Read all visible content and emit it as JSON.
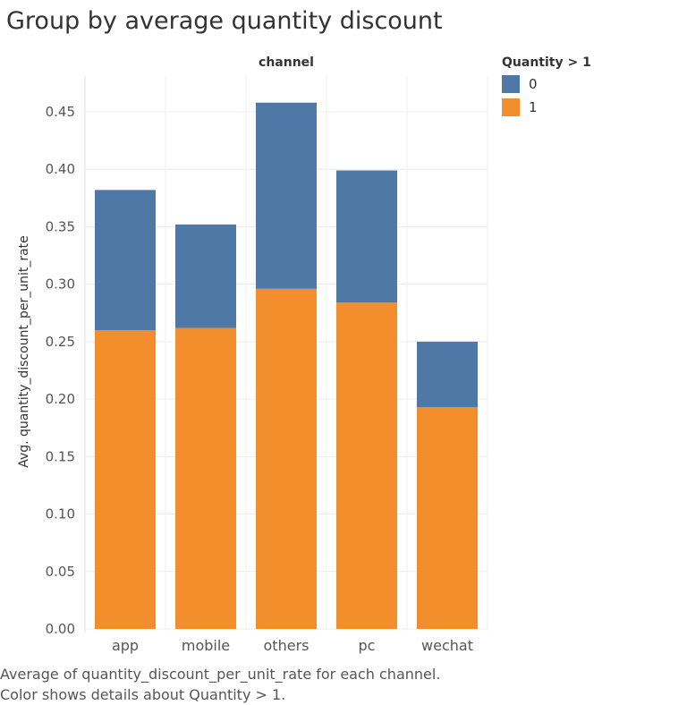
{
  "chart_data": {
    "type": "bar",
    "stacked": true,
    "title": "Group by average quantity discount",
    "column_header": "channel",
    "categories": [
      "app",
      "mobile",
      "others",
      "pc",
      "wechat"
    ],
    "ylabel": "Avg. quantity_discount_per_unit_rate",
    "ylim": [
      0,
      0.47
    ],
    "yticks": [
      "0.00",
      "0.05",
      "0.10",
      "0.15",
      "0.20",
      "0.25",
      "0.30",
      "0.35",
      "0.40",
      "0.45"
    ],
    "legend_title": "Quantity > 1",
    "legend_position": "top-right",
    "grid": true,
    "series": [
      {
        "name": "1",
        "color": "#f28e2b",
        "values": [
          0.26,
          0.262,
          0.296,
          0.284,
          0.193
        ]
      },
      {
        "name": "0",
        "color": "#4e79a7",
        "values": [
          0.122,
          0.09,
          0.162,
          0.115,
          0.057
        ]
      }
    ],
    "legend_order": [
      "0",
      "1"
    ]
  },
  "caption": {
    "line1": "Average of quantity_discount_per_unit_rate for each channel.",
    "line2": "Color shows details about Quantity > 1."
  }
}
